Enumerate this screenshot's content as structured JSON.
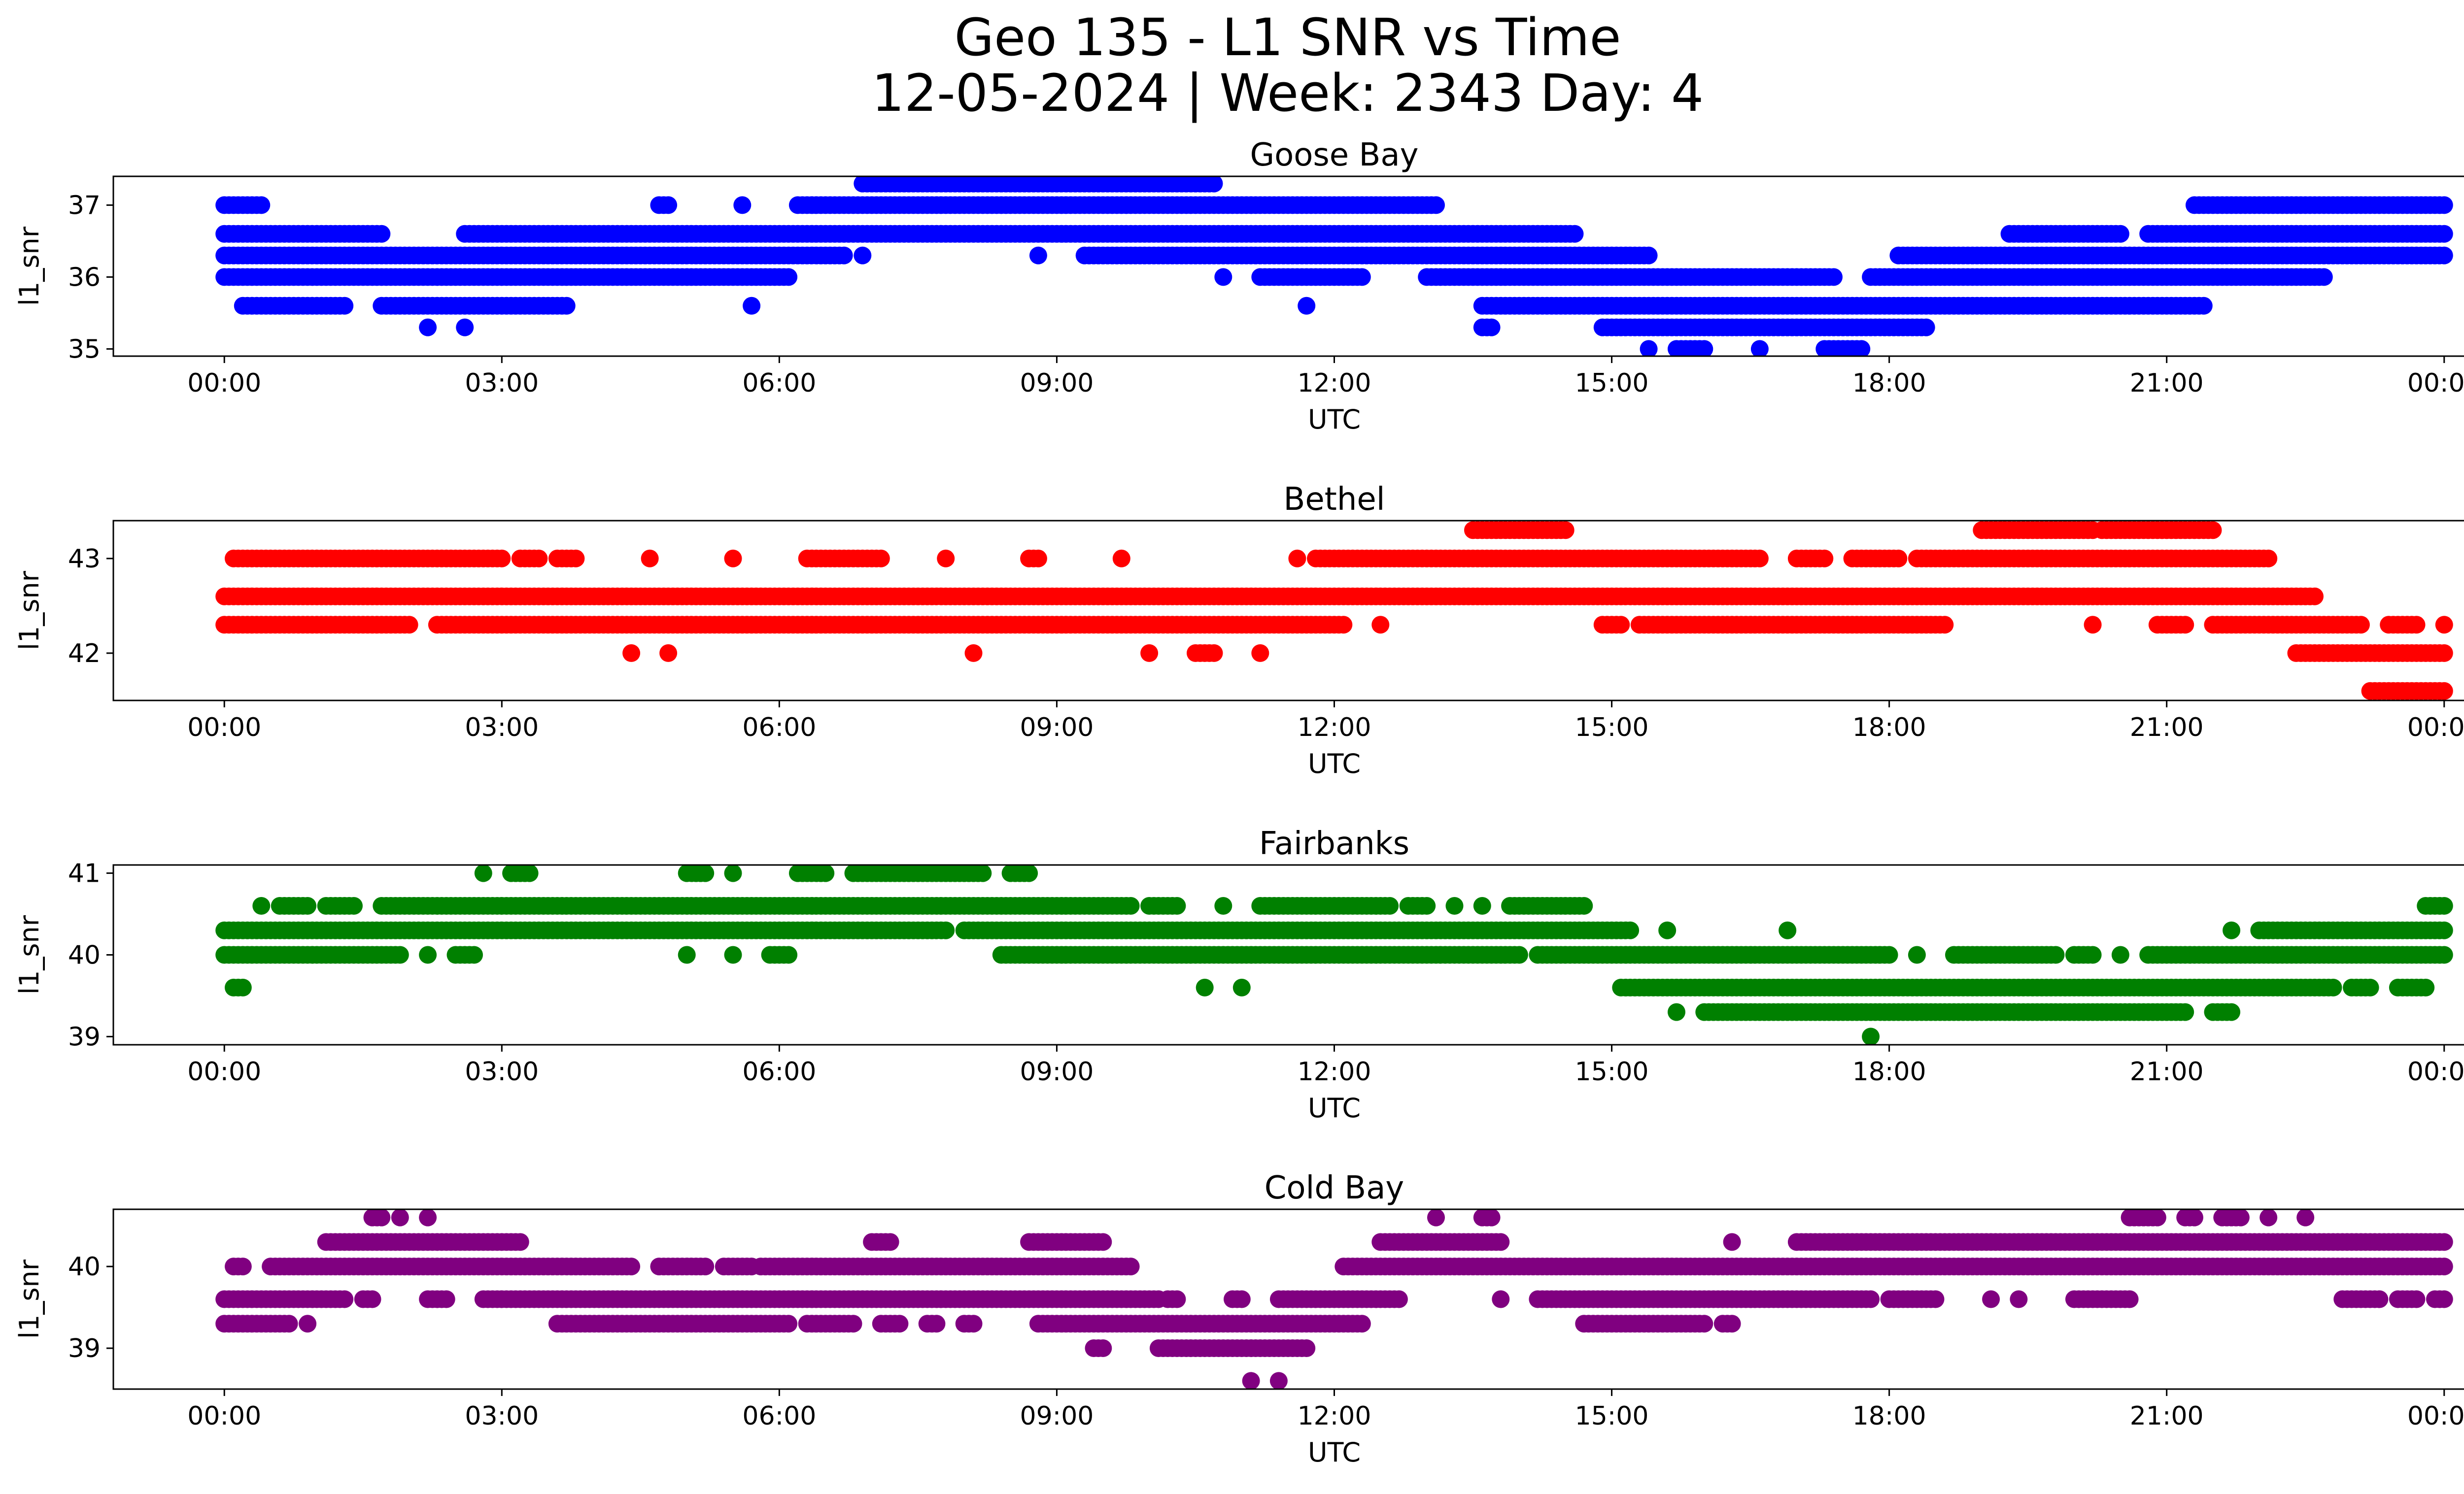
{
  "figure": {
    "title_line1": "Geo 135 - L1 SNR vs Time",
    "title_line2": "12-05-2024 | Week: 2343 Day: 4"
  },
  "chart_data": [
    {
      "type": "scatter",
      "title": "Goose Bay",
      "xlabel": "UTC",
      "ylabel": "l1_snr",
      "color": "#0000ff",
      "xlim_hours": [
        -1.2,
        25.2
      ],
      "ylim": [
        34.9,
        37.4
      ],
      "yticks": [
        35,
        36,
        37
      ],
      "xticks_hours": [
        0,
        3,
        6,
        9,
        12,
        15,
        18,
        21,
        24
      ],
      "xtick_labels": [
        "00:00",
        "03:00",
        "06:00",
        "09:00",
        "12:00",
        "15:00",
        "18:00",
        "21:00",
        "00:00"
      ],
      "series": [
        {
          "y": 37.3,
          "ranges": [
            [
              6.9,
              10.7
            ]
          ]
        },
        {
          "y": 37.0,
          "ranges": [
            [
              0.0,
              0.4
            ],
            [
              4.7,
              4.8
            ],
            [
              5.6,
              5.6
            ],
            [
              6.2,
              13.1
            ],
            [
              21.3,
              24.0
            ]
          ]
        },
        {
          "y": 36.6,
          "ranges": [
            [
              0.0,
              1.7
            ],
            [
              2.6,
              14.6
            ],
            [
              19.3,
              20.5
            ],
            [
              20.8,
              24.0
            ]
          ]
        },
        {
          "y": 36.3,
          "ranges": [
            [
              0.0,
              6.7
            ],
            [
              6.9,
              6.9
            ],
            [
              8.8,
              8.8
            ],
            [
              9.3,
              15.4
            ],
            [
              18.1,
              24.0
            ]
          ]
        },
        {
          "y": 36.0,
          "ranges": [
            [
              0.0,
              6.1
            ],
            [
              10.8,
              10.8
            ],
            [
              11.2,
              12.3
            ],
            [
              13.0,
              17.4
            ],
            [
              17.8,
              22.7
            ]
          ]
        },
        {
          "y": 35.6,
          "ranges": [
            [
              0.2,
              1.3
            ],
            [
              1.7,
              3.7
            ],
            [
              5.7,
              5.7
            ],
            [
              11.7,
              11.7
            ],
            [
              13.6,
              21.4
            ]
          ]
        },
        {
          "y": 35.3,
          "ranges": [
            [
              2.2,
              2.2
            ],
            [
              2.6,
              2.6
            ],
            [
              13.6,
              13.7
            ],
            [
              14.9,
              18.4
            ]
          ]
        },
        {
          "y": 35.0,
          "ranges": [
            [
              15.4,
              15.4
            ],
            [
              15.7,
              16.0
            ],
            [
              16.6,
              16.6
            ],
            [
              17.3,
              17.7
            ]
          ]
        }
      ]
    },
    {
      "type": "scatter",
      "title": "Bethel",
      "xlabel": "UTC",
      "ylabel": "l1_snr",
      "color": "#ff0000",
      "xlim_hours": [
        -1.2,
        25.2
      ],
      "ylim": [
        41.5,
        43.4
      ],
      "yticks": [
        42,
        43
      ],
      "xticks_hours": [
        0,
        3,
        6,
        9,
        12,
        15,
        18,
        21,
        24
      ],
      "xtick_labels": [
        "00:00",
        "03:00",
        "06:00",
        "09:00",
        "12:00",
        "15:00",
        "18:00",
        "21:00",
        "00:00"
      ],
      "series": [
        {
          "y": 43.3,
          "ranges": [
            [
              13.5,
              14.5
            ],
            [
              19.0,
              20.2
            ],
            [
              20.3,
              21.5
            ]
          ]
        },
        {
          "y": 43.0,
          "ranges": [
            [
              0.1,
              3.0
            ],
            [
              3.2,
              3.4
            ],
            [
              3.6,
              3.8
            ],
            [
              4.6,
              4.6
            ],
            [
              5.5,
              5.5
            ],
            [
              6.3,
              7.1
            ],
            [
              7.8,
              7.8
            ],
            [
              8.7,
              8.8
            ],
            [
              9.7,
              9.7
            ],
            [
              11.6,
              11.6
            ],
            [
              11.8,
              16.6
            ],
            [
              17.0,
              17.3
            ],
            [
              17.6,
              18.1
            ],
            [
              18.3,
              22.1
            ]
          ]
        },
        {
          "y": 42.6,
          "ranges": [
            [
              0.0,
              22.6
            ]
          ]
        },
        {
          "y": 42.3,
          "ranges": [
            [
              0.0,
              2.0
            ],
            [
              2.3,
              12.1
            ],
            [
              12.5,
              12.5
            ],
            [
              14.9,
              15.1
            ],
            [
              15.3,
              18.6
            ],
            [
              20.2,
              20.2
            ],
            [
              20.9,
              21.2
            ],
            [
              21.5,
              23.1
            ],
            [
              23.4,
              23.7
            ],
            [
              24.0,
              24.0
            ]
          ]
        },
        {
          "y": 42.0,
          "ranges": [
            [
              4.4,
              4.4
            ],
            [
              4.8,
              4.8
            ],
            [
              8.1,
              8.1
            ],
            [
              10.0,
              10.0
            ],
            [
              10.5,
              10.7
            ],
            [
              11.2,
              11.2
            ],
            [
              22.4,
              24.0
            ]
          ]
        },
        {
          "y": 41.6,
          "ranges": [
            [
              23.2,
              24.0
            ]
          ]
        }
      ]
    },
    {
      "type": "scatter",
      "title": "Fairbanks",
      "xlabel": "UTC",
      "ylabel": "l1_snr",
      "color": "#008000",
      "xlim_hours": [
        -1.2,
        25.2
      ],
      "ylim": [
        38.9,
        41.1
      ],
      "yticks": [
        39,
        40,
        41
      ],
      "xticks_hours": [
        0,
        3,
        6,
        9,
        12,
        15,
        18,
        21,
        24
      ],
      "xtick_labels": [
        "00:00",
        "03:00",
        "06:00",
        "09:00",
        "12:00",
        "15:00",
        "18:00",
        "21:00",
        "00:00"
      ],
      "series": [
        {
          "y": 41.0,
          "ranges": [
            [
              2.8,
              2.8
            ],
            [
              3.1,
              3.3
            ],
            [
              5.0,
              5.2
            ],
            [
              5.5,
              5.5
            ],
            [
              6.2,
              6.5
            ],
            [
              6.8,
              8.2
            ],
            [
              8.5,
              8.7
            ]
          ]
        },
        {
          "y": 40.6,
          "ranges": [
            [
              0.4,
              0.4
            ],
            [
              0.6,
              0.9
            ],
            [
              1.1,
              1.4
            ],
            [
              1.7,
              9.8
            ],
            [
              10.0,
              10.3
            ],
            [
              10.8,
              10.8
            ],
            [
              11.2,
              12.6
            ],
            [
              12.8,
              13.0
            ],
            [
              13.3,
              13.3
            ],
            [
              13.6,
              13.6
            ],
            [
              13.9,
              14.7
            ],
            [
              23.8,
              24.0
            ]
          ]
        },
        {
          "y": 40.3,
          "ranges": [
            [
              0.0,
              7.8
            ],
            [
              8.0,
              15.2
            ],
            [
              15.6,
              15.6
            ],
            [
              16.9,
              16.9
            ],
            [
              21.7,
              21.7
            ],
            [
              22.0,
              24.0
            ]
          ]
        },
        {
          "y": 40.0,
          "ranges": [
            [
              0.0,
              1.9
            ],
            [
              2.2,
              2.2
            ],
            [
              2.5,
              2.7
            ],
            [
              5.0,
              5.0
            ],
            [
              5.5,
              5.5
            ],
            [
              5.9,
              6.1
            ],
            [
              8.4,
              14.0
            ],
            [
              14.2,
              18.0
            ],
            [
              18.3,
              18.3
            ],
            [
              18.7,
              19.8
            ],
            [
              20.0,
              20.2
            ],
            [
              20.5,
              20.5
            ],
            [
              20.8,
              24.0
            ]
          ]
        },
        {
          "y": 39.6,
          "ranges": [
            [
              0.1,
              0.2
            ],
            [
              10.6,
              10.6
            ],
            [
              11.0,
              11.0
            ],
            [
              15.1,
              22.8
            ],
            [
              23.0,
              23.2
            ],
            [
              23.5,
              23.8
            ]
          ]
        },
        {
          "y": 39.3,
          "ranges": [
            [
              15.7,
              15.7
            ],
            [
              16.0,
              21.2
            ],
            [
              21.5,
              21.7
            ]
          ]
        },
        {
          "y": 39.0,
          "ranges": [
            [
              17.8,
              17.8
            ]
          ]
        }
      ]
    },
    {
      "type": "scatter",
      "title": "Cold Bay",
      "xlabel": "UTC",
      "ylabel": "l1_snr",
      "color": "#800080",
      "xlim_hours": [
        -1.2,
        25.2
      ],
      "ylim": [
        38.5,
        40.7
      ],
      "yticks": [
        39,
        40
      ],
      "xticks_hours": [
        0,
        3,
        6,
        9,
        12,
        15,
        18,
        21,
        24
      ],
      "xtick_labels": [
        "00:00",
        "03:00",
        "06:00",
        "09:00",
        "12:00",
        "15:00",
        "18:00",
        "21:00",
        "00:00"
      ],
      "series": [
        {
          "y": 40.6,
          "ranges": [
            [
              1.6,
              1.7
            ],
            [
              1.9,
              1.9
            ],
            [
              2.2,
              2.2
            ],
            [
              13.1,
              13.1
            ],
            [
              13.6,
              13.7
            ],
            [
              20.6,
              20.9
            ],
            [
              21.2,
              21.3
            ],
            [
              21.6,
              21.8
            ],
            [
              22.1,
              22.1
            ],
            [
              22.5,
              22.5
            ]
          ]
        },
        {
          "y": 40.3,
          "ranges": [
            [
              1.1,
              3.2
            ],
            [
              7.0,
              7.2
            ],
            [
              8.7,
              9.5
            ],
            [
              12.5,
              13.8
            ],
            [
              16.3,
              16.3
            ],
            [
              17.0,
              24.0
            ]
          ]
        },
        {
          "y": 40.0,
          "ranges": [
            [
              0.1,
              0.2
            ],
            [
              0.5,
              4.4
            ],
            [
              4.7,
              5.2
            ],
            [
              5.4,
              5.7
            ],
            [
              5.8,
              9.8
            ],
            [
              12.1,
              24.0
            ]
          ]
        },
        {
          "y": 39.6,
          "ranges": [
            [
              0.0,
              1.3
            ],
            [
              1.5,
              1.6
            ],
            [
              2.2,
              2.4
            ],
            [
              2.8,
              10.1
            ],
            [
              10.2,
              10.3
            ],
            [
              10.9,
              11.0
            ],
            [
              11.4,
              12.7
            ],
            [
              13.8,
              13.8
            ],
            [
              14.2,
              17.8
            ],
            [
              18.0,
              18.5
            ],
            [
              19.1,
              19.1
            ],
            [
              19.4,
              19.4
            ],
            [
              20.0,
              20.6
            ],
            [
              22.9,
              23.3
            ],
            [
              23.5,
              23.7
            ],
            [
              23.9,
              24.0
            ]
          ]
        },
        {
          "y": 39.3,
          "ranges": [
            [
              0.0,
              0.7
            ],
            [
              0.9,
              0.9
            ],
            [
              3.6,
              6.1
            ],
            [
              6.3,
              6.8
            ],
            [
              7.1,
              7.3
            ],
            [
              7.6,
              7.7
            ],
            [
              8.0,
              8.1
            ],
            [
              8.8,
              12.3
            ],
            [
              14.7,
              16.0
            ],
            [
              16.2,
              16.3
            ]
          ]
        },
        {
          "y": 39.0,
          "ranges": [
            [
              9.4,
              9.5
            ],
            [
              10.1,
              11.7
            ]
          ]
        },
        {
          "y": 38.6,
          "ranges": [
            [
              11.1,
              11.1
            ],
            [
              11.4,
              11.4
            ]
          ]
        }
      ]
    }
  ]
}
